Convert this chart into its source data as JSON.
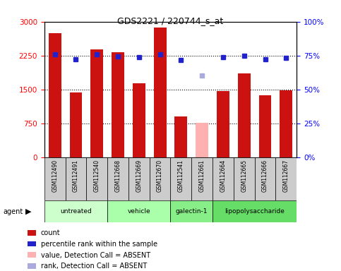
{
  "title": "GDS2221 / 220744_s_at",
  "samples": [
    "GSM112490",
    "GSM112491",
    "GSM112540",
    "GSM112668",
    "GSM112669",
    "GSM112670",
    "GSM112541",
    "GSM112661",
    "GSM112664",
    "GSM112665",
    "GSM112666",
    "GSM112667"
  ],
  "bar_values": [
    2750,
    1430,
    2380,
    2320,
    1640,
    2870,
    900,
    760,
    1470,
    1850,
    1370,
    1480
  ],
  "bar_colors": [
    "#cc1111",
    "#cc1111",
    "#cc1111",
    "#cc1111",
    "#cc1111",
    "#cc1111",
    "#cc1111",
    "#ffb0b0",
    "#cc1111",
    "#cc1111",
    "#cc1111",
    "#cc1111"
  ],
  "dot_values": [
    2280,
    2170,
    2280,
    2230,
    2220,
    2280,
    2150,
    1810,
    2210,
    2240,
    2170,
    2200
  ],
  "dot_colors": [
    "#2222cc",
    "#2222cc",
    "#2222cc",
    "#2222cc",
    "#2222cc",
    "#2222cc",
    "#2222cc",
    "#aaaadd",
    "#2222cc",
    "#2222cc",
    "#2222cc",
    "#2222cc"
  ],
  "ylim_left": [
    0,
    3000
  ],
  "ylim_right": [
    0,
    100
  ],
  "yticks_left": [
    0,
    750,
    1500,
    2250,
    3000
  ],
  "ytick_labels_left": [
    "0",
    "750",
    "1500",
    "2250",
    "3000"
  ],
  "yticks_right": [
    0,
    25,
    50,
    75,
    100
  ],
  "ytick_labels_right": [
    "0%",
    "25%",
    "50%",
    "75%",
    "100%"
  ],
  "agent_groups": [
    {
      "label": "untreated",
      "start": 0,
      "end": 3,
      "color": "#ccffcc"
    },
    {
      "label": "vehicle",
      "start": 3,
      "end": 6,
      "color": "#aaffaa"
    },
    {
      "label": "galectin-1",
      "start": 6,
      "end": 8,
      "color": "#88ee88"
    },
    {
      "label": "lipopolysaccharide",
      "start": 8,
      "end": 12,
      "color": "#66dd66"
    }
  ],
  "legend_items": [
    {
      "label": "count",
      "color": "#cc1111"
    },
    {
      "label": "percentile rank within the sample",
      "color": "#2222cc"
    },
    {
      "label": "value, Detection Call = ABSENT",
      "color": "#ffb0b0"
    },
    {
      "label": "rank, Detection Call = ABSENT",
      "color": "#aaaadd"
    }
  ],
  "agent_label": "agent",
  "xticklabel_bg": "#cccccc",
  "grid_dotline_vals": [
    750,
    1500,
    2250
  ]
}
